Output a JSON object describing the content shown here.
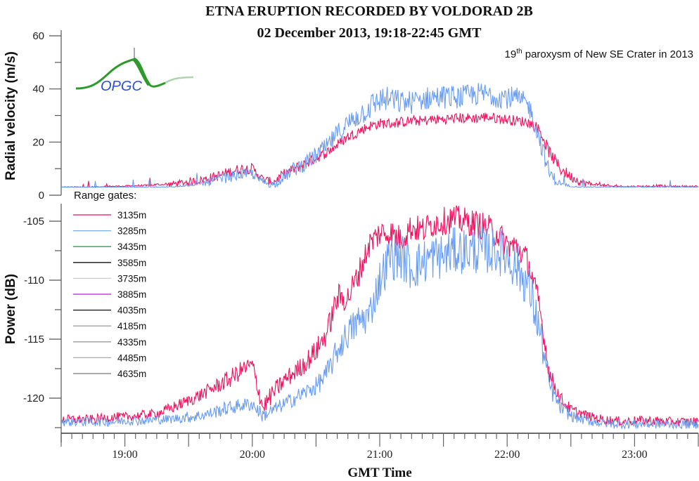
{
  "chart_data": [
    {
      "type": "line",
      "title": "ETNA ERUPTION RECORDED BY VOLDORAD 2B",
      "subtitle": "02 December 2013, 19:18-22:45 GMT",
      "annotation": {
        "prefix": "19",
        "superscript": "th",
        "text": " paroxysm of New SE Crater in 2013"
      },
      "ylabel": "Radial velocity (m/s)",
      "ylim": [
        0,
        60
      ],
      "yticks": [
        "0",
        "20",
        "40",
        "60"
      ],
      "ytick_values": [
        0,
        20,
        40,
        60
      ],
      "x_unit": "hours GMT",
      "xlim": [
        18.5,
        23.5
      ],
      "x": [
        18.5,
        18.583,
        18.667,
        18.75,
        18.833,
        18.917,
        19.0,
        19.083,
        19.167,
        19.25,
        19.333,
        19.417,
        19.5,
        19.583,
        19.667,
        19.75,
        19.833,
        19.917,
        20.0,
        20.083,
        20.167,
        20.25,
        20.333,
        20.417,
        20.5,
        20.583,
        20.667,
        20.75,
        20.833,
        20.917,
        21.0,
        21.083,
        21.167,
        21.25,
        21.333,
        21.417,
        21.5,
        21.583,
        21.667,
        21.75,
        21.833,
        21.917,
        22.0,
        22.083,
        22.167,
        22.25,
        22.333,
        22.417,
        22.5,
        22.583,
        22.667,
        22.75,
        22.833,
        22.917,
        23.0,
        23.083,
        23.167,
        23.25,
        23.333,
        23.417,
        23.5
      ],
      "series": [
        {
          "name": "3135m",
          "color": "#f0105e",
          "values": [
            3,
            3,
            3,
            3,
            3.2,
            3.3,
            3.3,
            3.5,
            3.5,
            3.8,
            4,
            4.5,
            5,
            5.5,
            6.5,
            7.5,
            9,
            10,
            10,
            6,
            5,
            8,
            10,
            12,
            14,
            16,
            19,
            22,
            24,
            26,
            27,
            27,
            27.5,
            28,
            28,
            28.5,
            28.5,
            29,
            29,
            29,
            29.5,
            29,
            28.5,
            28,
            27.5,
            25,
            16,
            10,
            7,
            5,
            4,
            3.5,
            3.3,
            3.2,
            3.2,
            3.2,
            3.3,
            3.2,
            3.2,
            3.2,
            3.2
          ],
          "noise": [
            0.3,
            0.3,
            0.3,
            0.4,
            0.4,
            0.4,
            0.4,
            0.5,
            0.5,
            0.8,
            1,
            1.2,
            1.5,
            1.5,
            1.8,
            2,
            2,
            2,
            2,
            1.5,
            1.5,
            2,
            2,
            2,
            2,
            2,
            2,
            2,
            2,
            2,
            2,
            2,
            2,
            2,
            2,
            2,
            2,
            2,
            2,
            2,
            2,
            2,
            2,
            2,
            2,
            2,
            2.5,
            2.5,
            2,
            1.5,
            1,
            0.8,
            0.6,
            0.5,
            0.5,
            0.6,
            0.8,
            0.6,
            0.5,
            0.5,
            0.5
          ]
        },
        {
          "name": "3285m",
          "color": "#6a9cf0",
          "values": [
            3,
            3,
            3,
            3,
            3,
            3,
            3,
            3,
            3,
            3,
            3,
            3.2,
            3.5,
            4,
            5,
            6,
            7,
            8,
            8,
            5,
            4,
            7,
            10,
            12,
            15,
            18,
            23,
            27,
            30,
            33,
            36,
            36,
            35,
            35,
            36,
            37,
            37,
            37,
            37,
            38,
            38,
            37.5,
            37,
            36,
            34,
            22,
            8,
            4,
            3.2,
            3,
            3,
            3,
            3,
            3,
            3,
            3,
            3,
            3,
            3,
            3,
            3
          ],
          "noise": [
            0.2,
            0.2,
            0.2,
            0.2,
            0.2,
            0.2,
            0.2,
            0.2,
            0.2,
            0.3,
            0.3,
            0.5,
            0.8,
            1,
            1.5,
            2,
            2,
            2,
            2,
            1.5,
            1.5,
            2,
            3,
            3,
            3.5,
            3.5,
            4,
            4,
            4.5,
            5,
            5,
            5,
            4.5,
            4.5,
            4.5,
            4.5,
            4.5,
            4.5,
            4.5,
            4.5,
            4.5,
            4.5,
            4.5,
            4.5,
            4,
            4,
            3,
            1.5,
            0.5,
            0.3,
            0.3,
            0.3,
            0.3,
            0.3,
            0.3,
            0.3,
            0.3,
            0.3,
            0.3,
            0.3,
            0.3
          ]
        }
      ]
    },
    {
      "type": "line",
      "ylabel": "Power (dB)",
      "ylim": [
        -123,
        -104.2
      ],
      "yticks": [
        "-105",
        "-110",
        "-115",
        "-120"
      ],
      "ytick_values": [
        -105,
        -110,
        -115,
        -120
      ],
      "xlabel": "GMT Time",
      "xlim": [
        18.5,
        23.5
      ],
      "xticks": [
        "19:00",
        "20:00",
        "21:00",
        "22:00",
        "23:00"
      ],
      "xtick_values": [
        19,
        20,
        21,
        22,
        23
      ],
      "x": [
        18.5,
        18.583,
        18.667,
        18.75,
        18.833,
        18.917,
        19.0,
        19.083,
        19.167,
        19.25,
        19.333,
        19.417,
        19.5,
        19.583,
        19.667,
        19.75,
        19.833,
        19.917,
        20.0,
        20.083,
        20.167,
        20.25,
        20.333,
        20.417,
        20.5,
        20.583,
        20.667,
        20.75,
        20.833,
        20.917,
        21.0,
        21.083,
        21.167,
        21.25,
        21.333,
        21.417,
        21.5,
        21.583,
        21.667,
        21.75,
        21.833,
        21.917,
        22.0,
        22.083,
        22.167,
        22.25,
        22.333,
        22.417,
        22.5,
        22.583,
        22.667,
        22.75,
        22.833,
        22.917,
        23.0,
        23.083,
        23.167,
        23.25,
        23.333,
        23.417,
        23.5
      ],
      "series": [
        {
          "name": "3135m",
          "color": "#f0105e",
          "values": [
            -121.8,
            -121.8,
            -121.8,
            -121.8,
            -121.7,
            -121.6,
            -121.6,
            -121.5,
            -121.4,
            -121.3,
            -121,
            -120.6,
            -120.2,
            -119.8,
            -119.3,
            -118.8,
            -118.3,
            -117.6,
            -117.2,
            -120.8,
            -119.5,
            -118.5,
            -117.8,
            -117,
            -116,
            -114.5,
            -111.5,
            -111.5,
            -109.5,
            -107,
            -106,
            -106,
            -106.5,
            -105.5,
            -105.8,
            -105.2,
            -105,
            -104.8,
            -105,
            -105.2,
            -105.5,
            -106,
            -107,
            -107.2,
            -108.5,
            -112,
            -118,
            -120,
            -121,
            -121.3,
            -121.6,
            -121.8,
            -121.9,
            -122,
            -121.9,
            -121.9,
            -121.9,
            -122,
            -122,
            -122,
            -122
          ],
          "noise": [
            0.4,
            0.4,
            0.4,
            0.4,
            0.4,
            0.4,
            0.4,
            0.4,
            0.4,
            0.4,
            0.5,
            0.5,
            0.5,
            0.6,
            0.6,
            0.7,
            0.8,
            0.8,
            0.8,
            0.8,
            0.8,
            0.8,
            0.8,
            0.9,
            1,
            1,
            1.2,
            1.2,
            1.2,
            1.2,
            1.2,
            1.2,
            1.2,
            1.2,
            1.2,
            1.2,
            1.2,
            1.2,
            1.2,
            1.2,
            1.2,
            1.2,
            1.2,
            1.2,
            1.2,
            1,
            0.8,
            0.6,
            0.5,
            0.4,
            0.4,
            0.4,
            0.4,
            0.4,
            0.4,
            0.4,
            0.4,
            0.4,
            0.4,
            0.4,
            0.4
          ]
        },
        {
          "name": "3285m",
          "color": "#6a9cf0",
          "values": [
            -122,
            -122,
            -122,
            -122,
            -122,
            -122,
            -121.9,
            -121.9,
            -121.9,
            -121.8,
            -121.8,
            -121.7,
            -121.6,
            -121.5,
            -121.3,
            -121,
            -120.8,
            -120.6,
            -120.5,
            -121.5,
            -121,
            -120.5,
            -120,
            -119.5,
            -119,
            -118,
            -116,
            -114.5,
            -113.5,
            -113,
            -110,
            -108,
            -108,
            -109,
            -108.5,
            -108,
            -108,
            -107.5,
            -107.5,
            -107.5,
            -107.5,
            -107.5,
            -108,
            -109,
            -110.5,
            -114,
            -119,
            -120.8,
            -121.5,
            -121.8,
            -122,
            -122.1,
            -122.2,
            -122.2,
            -122.2,
            -122.2,
            -122.2,
            -122.2,
            -122.2,
            -122.2,
            -122.2
          ],
          "noise": [
            0.4,
            0.4,
            0.4,
            0.4,
            0.4,
            0.4,
            0.4,
            0.4,
            0.4,
            0.4,
            0.4,
            0.4,
            0.5,
            0.5,
            0.5,
            0.6,
            0.6,
            0.6,
            0.6,
            0.6,
            0.6,
            0.6,
            0.7,
            0.7,
            0.8,
            1,
            1.2,
            1.4,
            1.5,
            1.5,
            1.8,
            2,
            2,
            2,
            2,
            2,
            2,
            2,
            2,
            2,
            2,
            2,
            2,
            2,
            2,
            1.8,
            1,
            0.6,
            0.5,
            0.4,
            0.4,
            0.4,
            0.4,
            0.4,
            0.4,
            0.4,
            0.4,
            0.4,
            0.4,
            0.4,
            0.4
          ]
        }
      ],
      "legend": {
        "title": "Range gates:",
        "position": "top-left",
        "entries": [
          {
            "label": "3135m",
            "color": "#e8105a"
          },
          {
            "label": "3285m",
            "color": "#7aaaf0"
          },
          {
            "label": "3435m",
            "color": "#2aa050"
          },
          {
            "label": "3585m",
            "color": "#111111"
          },
          {
            "label": "3735m",
            "color": "#cccccc"
          },
          {
            "label": "3885m",
            "color": "#b020d0"
          },
          {
            "label": "4035m",
            "color": "#111111"
          },
          {
            "label": "4185m",
            "color": "#a0a0a0"
          },
          {
            "label": "4335m",
            "color": "#999999"
          },
          {
            "label": "4485m",
            "color": "#aaaaaa"
          },
          {
            "label": "4635m",
            "color": "#777777"
          }
        ]
      }
    }
  ],
  "logo": {
    "text": "OPGC",
    "swoosh_color": "#2e9a2e",
    "text_color": "#2a4fd0"
  }
}
